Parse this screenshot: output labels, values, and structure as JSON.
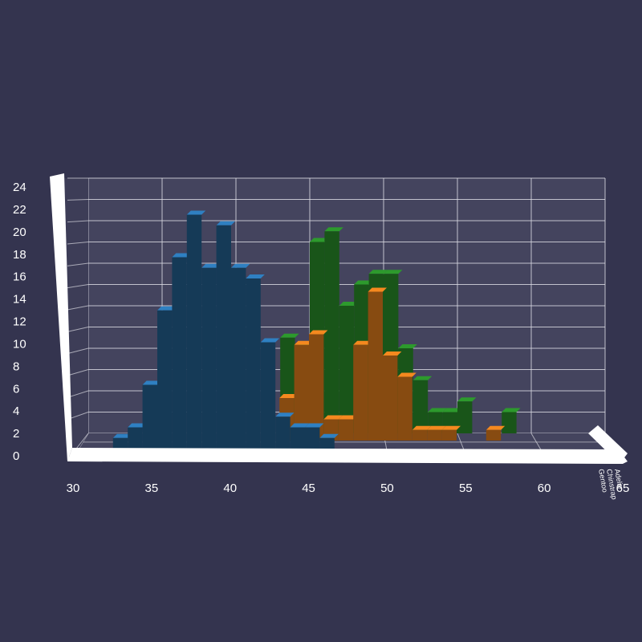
{
  "chart_data": {
    "type": "bar",
    "style": "3d-histogram",
    "grid": true,
    "x_ticks": [
      "30",
      "35",
      "40",
      "45",
      "50",
      "55",
      "60",
      "65"
    ],
    "y_ticks": [
      "0",
      "2",
      "4",
      "6",
      "8",
      "10",
      "12",
      "14",
      "16",
      "18",
      "20",
      "22",
      "24"
    ],
    "xlim": [
      30,
      65
    ],
    "ylim": [
      0,
      24
    ],
    "depth_labels": [
      "Gentoo",
      "Chinstrap",
      "Adelie"
    ],
    "series": [
      {
        "color": "#2d9a2d",
        "bins": [
          {
            "x0": 43,
            "x1": 44,
            "count": 9
          },
          {
            "x0": 44,
            "x1": 45,
            "count": 8
          },
          {
            "x0": 45,
            "x1": 46,
            "count": 18
          },
          {
            "x0": 46,
            "x1": 47,
            "count": 19
          },
          {
            "x0": 47,
            "x1": 48,
            "count": 12
          },
          {
            "x0": 48,
            "x1": 49,
            "count": 14
          },
          {
            "x0": 49,
            "x1": 50,
            "count": 15
          },
          {
            "x0": 50,
            "x1": 51,
            "count": 15
          },
          {
            "x0": 51,
            "x1": 52,
            "count": 8
          },
          {
            "x0": 52,
            "x1": 53,
            "count": 5
          },
          {
            "x0": 53,
            "x1": 54,
            "count": 2
          },
          {
            "x0": 54,
            "x1": 55,
            "count": 2
          },
          {
            "x0": 55,
            "x1": 56,
            "count": 3
          },
          {
            "x0": 58,
            "x1": 59,
            "count": 2
          }
        ]
      },
      {
        "color": "#f5891f",
        "bins": [
          {
            "x0": 43,
            "x1": 44,
            "count": 4
          },
          {
            "x0": 44,
            "x1": 45,
            "count": 9
          },
          {
            "x0": 45,
            "x1": 46,
            "count": 10
          },
          {
            "x0": 46,
            "x1": 47,
            "count": 2
          },
          {
            "x0": 47,
            "x1": 48,
            "count": 2
          },
          {
            "x0": 48,
            "x1": 49,
            "count": 9
          },
          {
            "x0": 49,
            "x1": 50,
            "count": 14
          },
          {
            "x0": 50,
            "x1": 51,
            "count": 8
          },
          {
            "x0": 51,
            "x1": 52,
            "count": 6
          },
          {
            "x0": 52,
            "x1": 53,
            "count": 1
          },
          {
            "x0": 53,
            "x1": 54,
            "count": 1
          },
          {
            "x0": 54,
            "x1": 55,
            "count": 1
          },
          {
            "x0": 57,
            "x1": 58,
            "count": 1
          }
        ]
      },
      {
        "color": "#2f80c2",
        "bins": [
          {
            "x0": 32,
            "x1": 33,
            "count": 1
          },
          {
            "x0": 33,
            "x1": 34,
            "count": 2
          },
          {
            "x0": 34,
            "x1": 35,
            "count": 6
          },
          {
            "x0": 35,
            "x1": 36,
            "count": 13
          },
          {
            "x0": 36,
            "x1": 37,
            "count": 18
          },
          {
            "x0": 37,
            "x1": 38,
            "count": 22
          },
          {
            "x0": 38,
            "x1": 39,
            "count": 17
          },
          {
            "x0": 39,
            "x1": 40,
            "count": 21
          },
          {
            "x0": 40,
            "x1": 41,
            "count": 17
          },
          {
            "x0": 41,
            "x1": 42,
            "count": 16
          },
          {
            "x0": 42,
            "x1": 43,
            "count": 10
          },
          {
            "x0": 43,
            "x1": 44,
            "count": 3
          },
          {
            "x0": 44,
            "x1": 45,
            "count": 2
          },
          {
            "x0": 45,
            "x1": 46,
            "count": 2
          },
          {
            "x0": 46,
            "x1": 47,
            "count": 1
          }
        ]
      }
    ]
  }
}
